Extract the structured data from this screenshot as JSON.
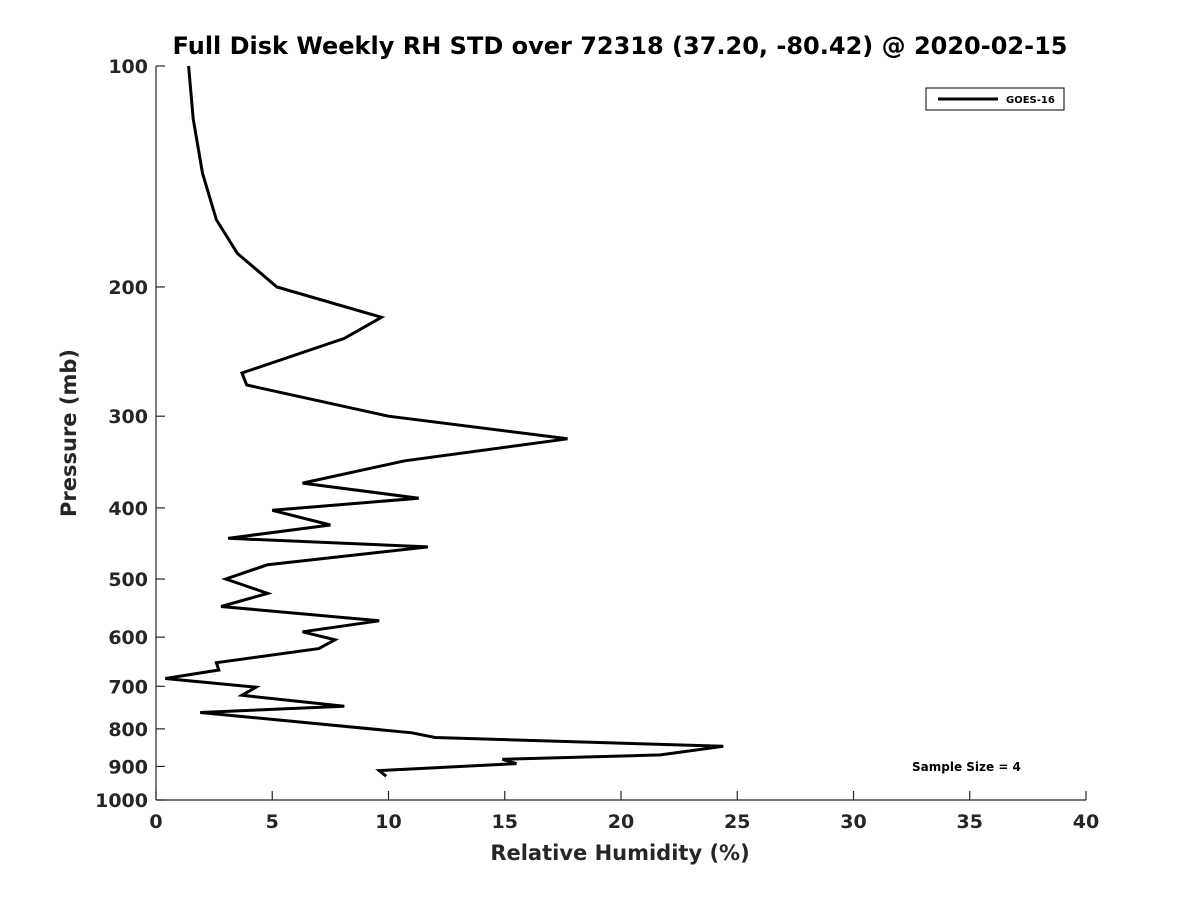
{
  "chart_data": {
    "type": "line",
    "title": "Full Disk Weekly RH STD over 72318 (37.20, -80.42) @ 2020-02-15",
    "xlabel": "Relative Humidity (%)",
    "ylabel": "Pressure (mb)",
    "xlim": [
      0,
      40
    ],
    "ylim": [
      100,
      1000
    ],
    "yscale": "log",
    "yreversed": true,
    "grid": false,
    "legend_position": "top-right",
    "xticks": [
      0,
      5,
      10,
      15,
      20,
      25,
      30,
      35,
      40
    ],
    "xtick_labels": [
      "0",
      "5",
      "10",
      "15",
      "20",
      "25",
      "30",
      "35",
      "40"
    ],
    "yticks": [
      100,
      200,
      300,
      400,
      500,
      600,
      700,
      800,
      900,
      1000
    ],
    "ytick_labels": [
      "100",
      "200",
      "300",
      "400",
      "500",
      "600",
      "700",
      "800",
      "900",
      "1000"
    ],
    "annotation": "Sample Size = 4",
    "series": [
      {
        "name": "GOES-16",
        "color": "#000000",
        "x": [
          1.4,
          1.6,
          2.0,
          2.6,
          3.5,
          5.2,
          9.7,
          8.1,
          3.7,
          3.9,
          10.0,
          17.7,
          10.7,
          6.3,
          11.3,
          5.0,
          7.5,
          3.1,
          11.7,
          4.8,
          3.0,
          4.8,
          2.8,
          9.6,
          6.3,
          7.7,
          7.0,
          2.6,
          2.7,
          0.4,
          4.3,
          3.7,
          8.1,
          1.9,
          11.0,
          12.0,
          24.4,
          21.7,
          14.9,
          15.5,
          9.6,
          9.9
        ],
        "y": [
          100,
          118,
          140,
          162,
          180,
          200,
          220,
          235,
          262,
          272,
          300,
          322,
          345,
          370,
          388,
          403,
          422,
          440,
          452,
          478,
          500,
          523,
          545,
          570,
          590,
          605,
          622,
          650,
          665,
          683,
          702,
          720,
          745,
          760,
          810,
          822,
          845,
          868,
          880,
          892,
          912,
          928
        ]
      }
    ]
  }
}
